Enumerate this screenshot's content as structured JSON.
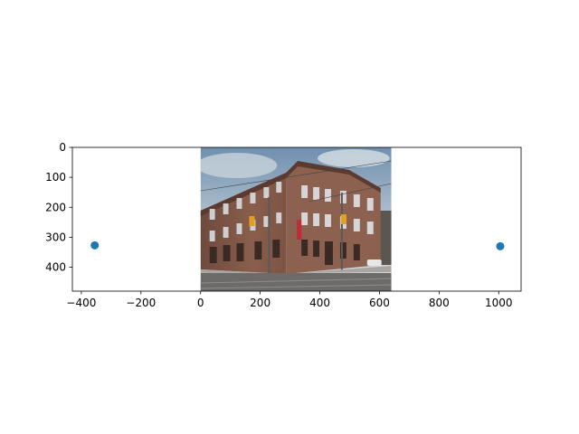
{
  "chart_data": {
    "type": "scatter",
    "title": "",
    "xlabel": "",
    "ylabel": "",
    "xlim": [
      -430,
      1075
    ],
    "ylim": [
      480,
      0
    ],
    "y_inverted": true,
    "xticks": [
      -400,
      -200,
      0,
      200,
      400,
      600,
      800,
      1000
    ],
    "yticks": [
      0,
      100,
      200,
      300,
      400
    ],
    "xtick_labels": [
      "−400",
      "−200",
      "0",
      "200",
      "400",
      "600",
      "800",
      "1000"
    ],
    "ytick_labels": [
      "0",
      "100",
      "200",
      "300",
      "400"
    ],
    "grid": false,
    "legend": "none",
    "series": [
      {
        "marker": "circle",
        "color": "#1f77b4",
        "x": [
          -355,
          1005
        ],
        "y": [
          327,
          330
        ]
      }
    ],
    "background_image": {
      "subject": "photo-building",
      "extent_x": [
        0,
        640
      ],
      "extent_y": [
        0,
        480
      ]
    }
  },
  "colors": {
    "point": "#1f77b4",
    "axes": "#000000",
    "background": "#ffffff"
  }
}
